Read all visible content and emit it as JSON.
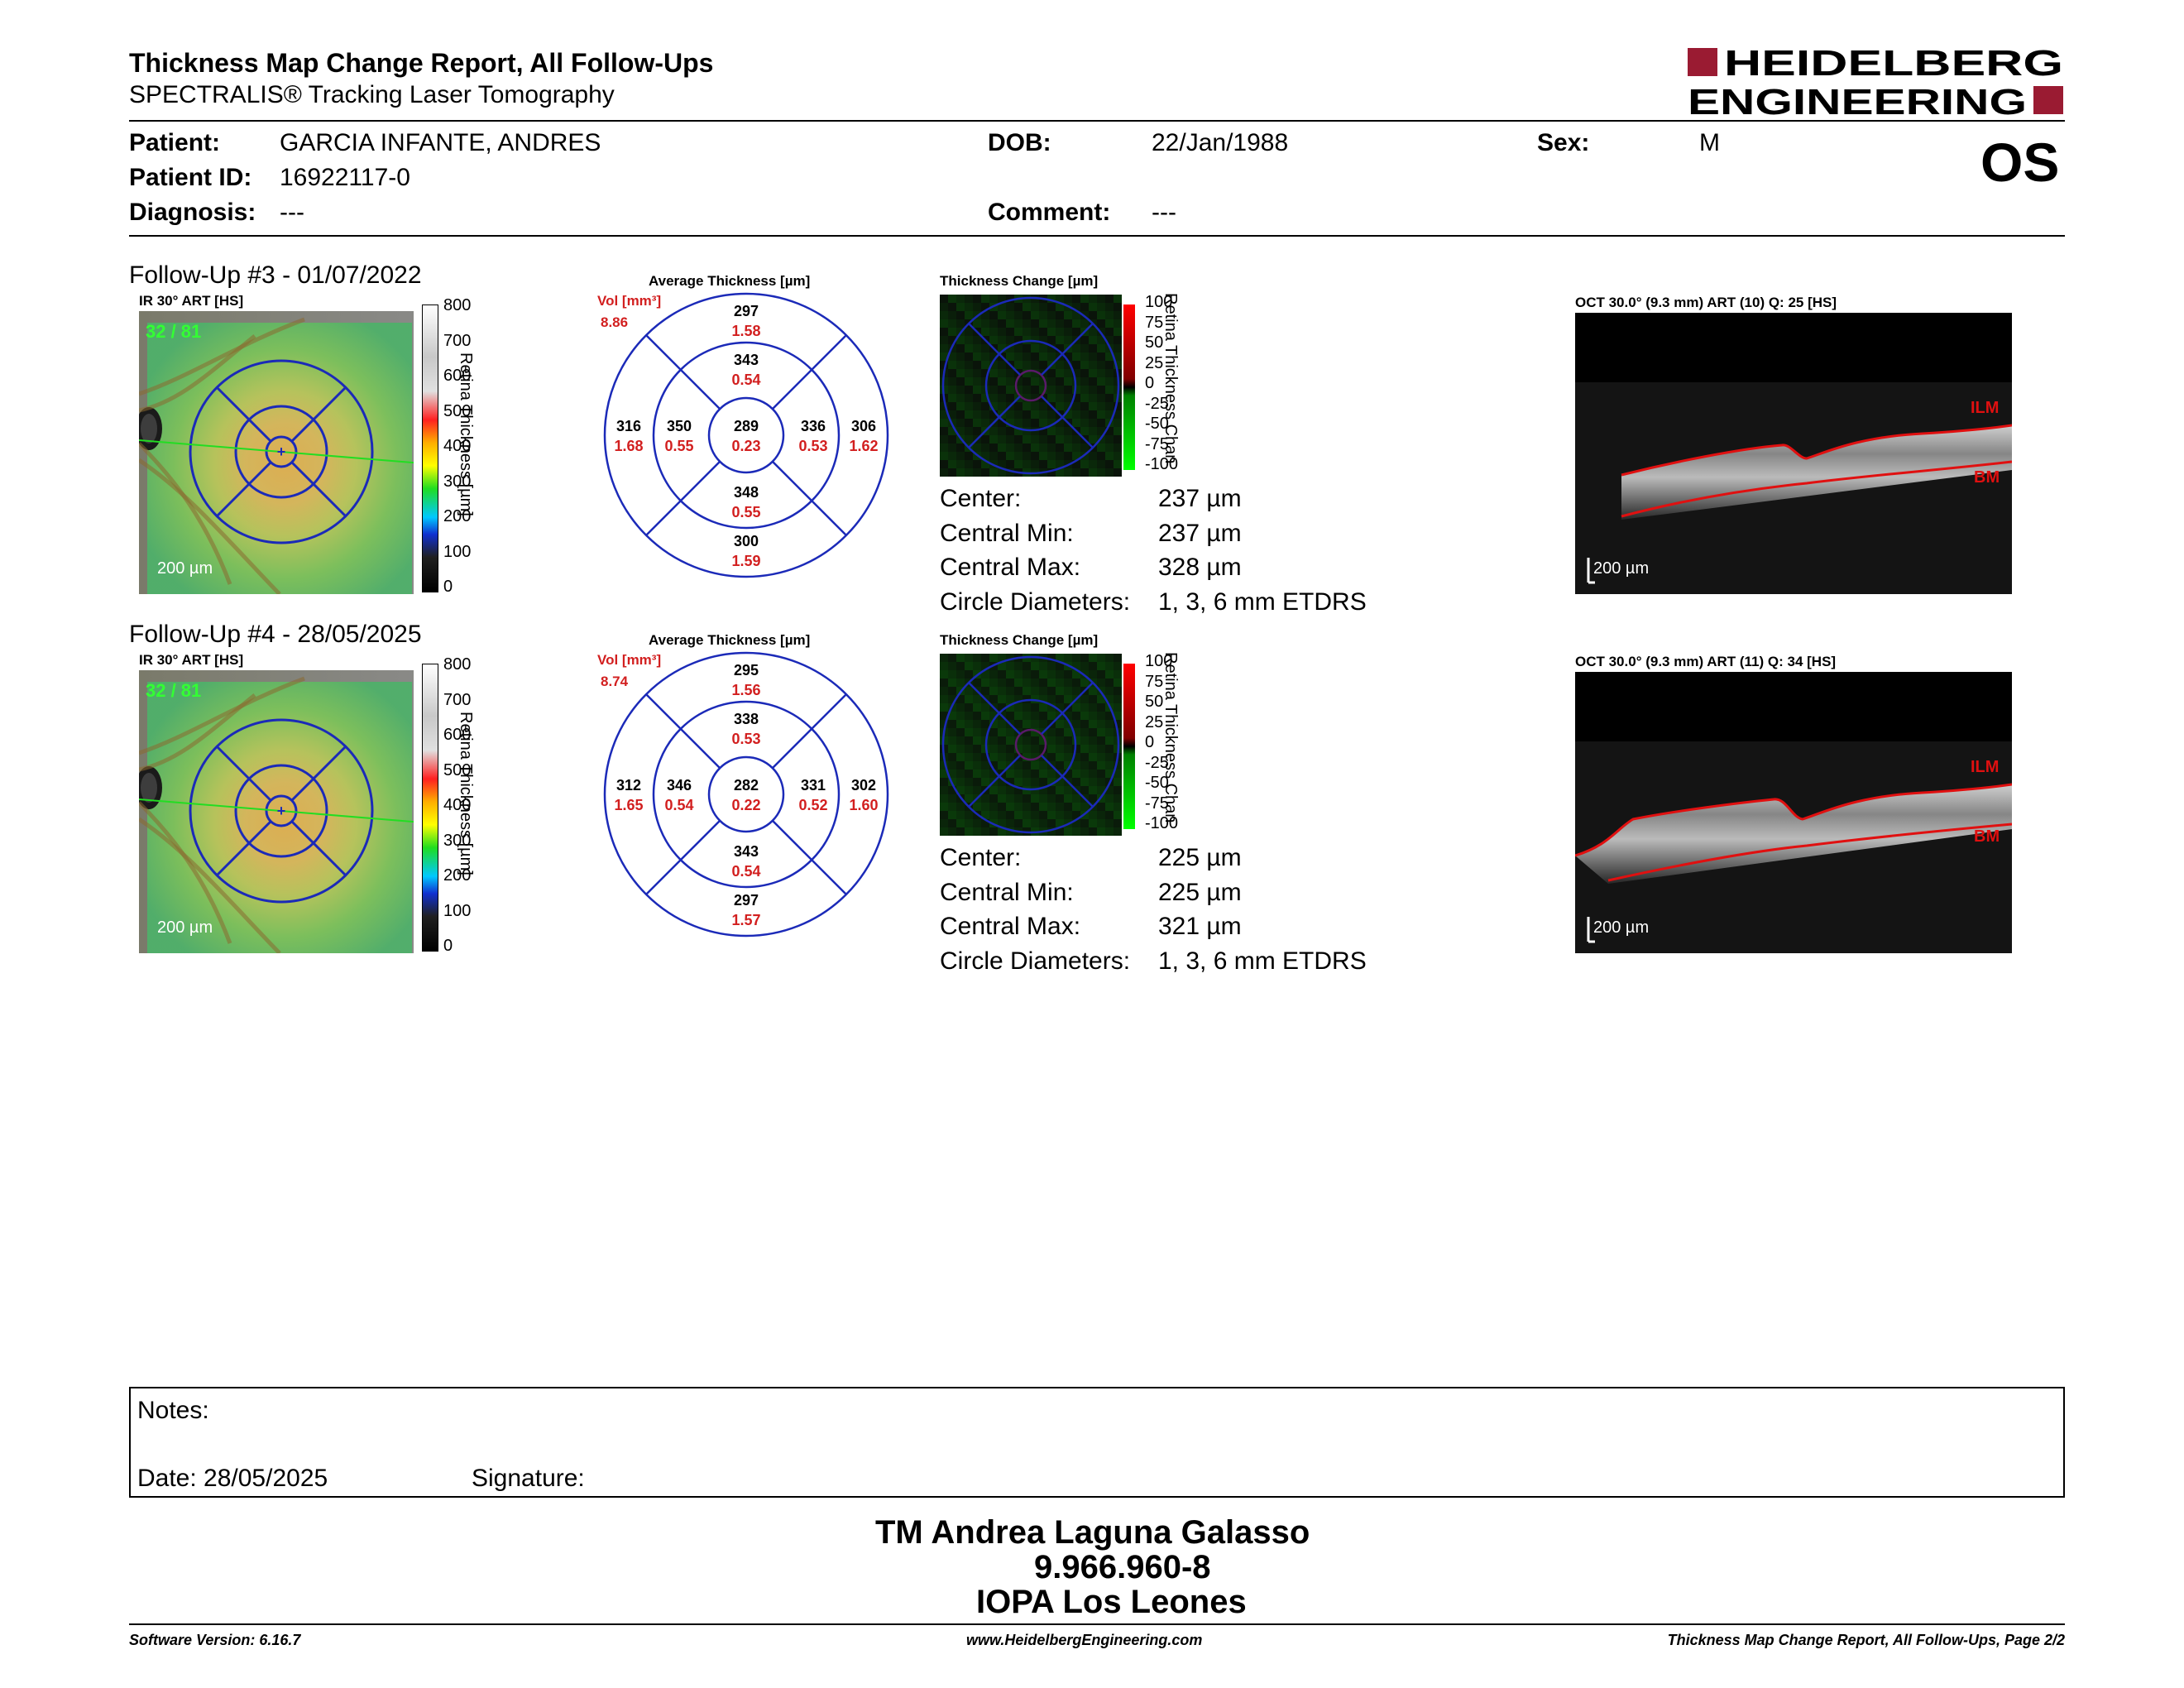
{
  "header": {
    "title": "Thickness Map Change Report, All Follow-Ups",
    "subtitle": "SPECTRALIS® Tracking Laser Tomography",
    "logo_line1": "HEIDELBERG",
    "logo_line2": "ENGINEERING",
    "brand_color": "#9a1b32"
  },
  "patient": {
    "patient_label": "Patient:",
    "patient_value": "GARCIA INFANTE, ANDRES",
    "id_label": "Patient ID:",
    "id_value": "16922117-0",
    "diagnosis_label": "Diagnosis:",
    "diagnosis_value": "---",
    "dob_label": "DOB:",
    "dob_value": "22/Jan/1988",
    "comment_label": "Comment:",
    "comment_value": "---",
    "sex_label": "Sex:",
    "sex_value": "M",
    "eye": "OS"
  },
  "followups": [
    {
      "title": "Follow-Up #3 - 01/07/2022",
      "ir_label": "IR 30° ART [HS]",
      "ir_overlay": "32 / 81",
      "scale_text": "200 µm",
      "colorbar_ticks": [
        "800",
        "700",
        "600",
        "500",
        "400",
        "300",
        "200",
        "100",
        "0"
      ],
      "colorbar_label": "Retina Thickness [µm]",
      "avg_title": "Average Thickness [µm]",
      "vol_label": "Vol [mm³]",
      "vol_value": "8.86",
      "sectors": {
        "center": {
          "t": "289",
          "v": "0.23"
        },
        "inner_top": {
          "t": "343",
          "v": "0.54"
        },
        "inner_bottom": {
          "t": "348",
          "v": "0.55"
        },
        "inner_left": {
          "t": "350",
          "v": "0.55"
        },
        "inner_right": {
          "t": "336",
          "v": "0.53"
        },
        "outer_top": {
          "t": "297",
          "v": "1.58"
        },
        "outer_bottom": {
          "t": "300",
          "v": "1.59"
        },
        "outer_left": {
          "t": "316",
          "v": "1.68"
        },
        "outer_right": {
          "t": "306",
          "v": "1.62"
        }
      },
      "change_title": "Thickness Change [µm]",
      "change_ticks": [
        "100",
        "75",
        "50",
        "25",
        "0",
        "-25",
        "-50",
        "-75",
        "-100"
      ],
      "change_label": "Retina Thickness Chan",
      "measures": [
        {
          "label": "Center:",
          "value": "237 µm"
        },
        {
          "label": "Central Min:",
          "value": "237 µm"
        },
        {
          "label": "Central Max:",
          "value": "328 µm"
        },
        {
          "label": "Circle Diameters:",
          "value": "1, 3, 6 mm ETDRS"
        }
      ],
      "oct_label": "OCT 30.0° (9.3 mm) ART (10) Q: 25 [HS]",
      "oct_scale": "200 µm",
      "ilm": "ILM",
      "bm": "BM"
    },
    {
      "title": "Follow-Up #4 - 28/05/2025",
      "ir_label": "IR 30° ART [HS]",
      "ir_overlay": "32 / 81",
      "scale_text": "200 µm",
      "colorbar_ticks": [
        "800",
        "700",
        "600",
        "500",
        "400",
        "300",
        "200",
        "100",
        "0"
      ],
      "colorbar_label": "Retina Thickness [µm]",
      "avg_title": "Average Thickness [µm]",
      "vol_label": "Vol [mm³]",
      "vol_value": "8.74",
      "sectors": {
        "center": {
          "t": "282",
          "v": "0.22"
        },
        "inner_top": {
          "t": "338",
          "v": "0.53"
        },
        "inner_bottom": {
          "t": "343",
          "v": "0.54"
        },
        "inner_left": {
          "t": "346",
          "v": "0.54"
        },
        "inner_right": {
          "t": "331",
          "v": "0.52"
        },
        "outer_top": {
          "t": "295",
          "v": "1.56"
        },
        "outer_bottom": {
          "t": "297",
          "v": "1.57"
        },
        "outer_left": {
          "t": "312",
          "v": "1.65"
        },
        "outer_right": {
          "t": "302",
          "v": "1.60"
        }
      },
      "change_title": "Thickness Change [µm]",
      "change_ticks": [
        "100",
        "75",
        "50",
        "25",
        "0",
        "-25",
        "-50",
        "-75",
        "-100"
      ],
      "change_label": "Retina Thickness Chan",
      "measures": [
        {
          "label": "Center:",
          "value": "225 µm"
        },
        {
          "label": "Central Min:",
          "value": "225 µm"
        },
        {
          "label": "Central Max:",
          "value": "321 µm"
        },
        {
          "label": "Circle Diameters:",
          "value": "1, 3, 6 mm ETDRS"
        }
      ],
      "oct_label": "OCT 30.0° (9.3 mm) ART (11) Q: 34 [HS]",
      "oct_scale": "200 µm",
      "ilm": "ILM",
      "bm": "BM"
    }
  ],
  "notes": {
    "notes_label": "Notes:",
    "date_label": "Date: 28/05/2025",
    "signature_label": "Signature:"
  },
  "signer": {
    "name": "TM Andrea Laguna Galasso",
    "id": "9.966.960-8",
    "institution": "IOPA Los Leones"
  },
  "footer": {
    "software": "Software Version: 6.16.7",
    "website": "www.HeidelbergEngineering.com",
    "page": "Thickness Map Change Report, All Follow-Ups, Page 2/2"
  }
}
